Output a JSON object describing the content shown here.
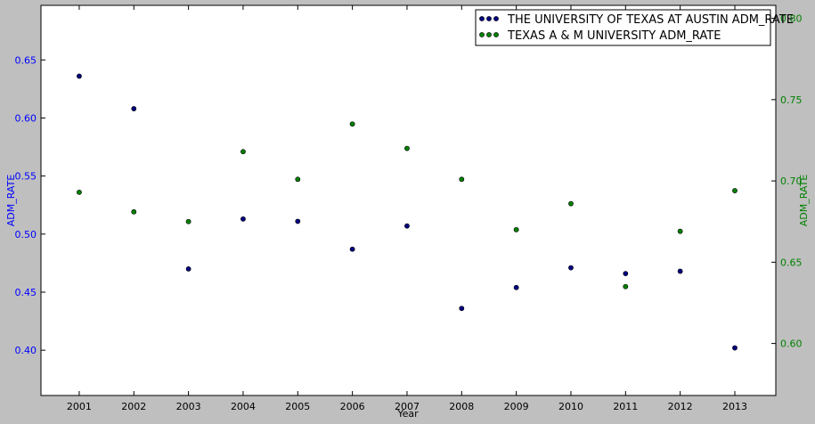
{
  "chart_data": {
    "type": "scatter",
    "title": "",
    "xlabel": "Year",
    "x": [
      2001,
      2002,
      2003,
      2004,
      2005,
      2006,
      2007,
      2008,
      2009,
      2010,
      2011,
      2012,
      2013
    ],
    "xlim": [
      2000.3,
      2013.75
    ],
    "xticks": [
      "2001",
      "2002",
      "2003",
      "2004",
      "2005",
      "2006",
      "2007",
      "2008",
      "2009",
      "2010",
      "2011",
      "2012",
      "2013"
    ],
    "ylabel_left": "ADM_RATE",
    "ylabel_right": "ADM_RATE",
    "ylim_left": [
      0.361,
      0.697
    ],
    "ylim_right": [
      0.568,
      0.808
    ],
    "yticks_left": [
      "0.40",
      "0.45",
      "0.50",
      "0.55",
      "0.60",
      "0.65"
    ],
    "yticks_right": [
      "0.60",
      "0.65",
      "0.70",
      "0.75",
      "0.80"
    ],
    "left_axis_color": "#0000ff",
    "right_axis_color": "#008000",
    "legend_position": "top-right",
    "grid": false,
    "series": [
      {
        "name": "THE UNIVERSITY OF TEXAS AT AUSTIN ADM_RATE",
        "axis": "left",
        "color": "#00007f",
        "values": [
          0.636,
          0.608,
          0.47,
          0.513,
          0.511,
          0.487,
          0.507,
          0.436,
          0.454,
          0.471,
          0.466,
          0.468,
          0.402
        ]
      },
      {
        "name": "TEXAS A & M UNIVERSITY ADM_RATE",
        "axis": "right",
        "color": "#008000",
        "values": [
          0.693,
          0.681,
          0.675,
          0.718,
          0.701,
          0.735,
          0.72,
          0.701,
          0.67,
          0.686,
          0.635,
          0.669,
          0.694
        ]
      }
    ]
  }
}
